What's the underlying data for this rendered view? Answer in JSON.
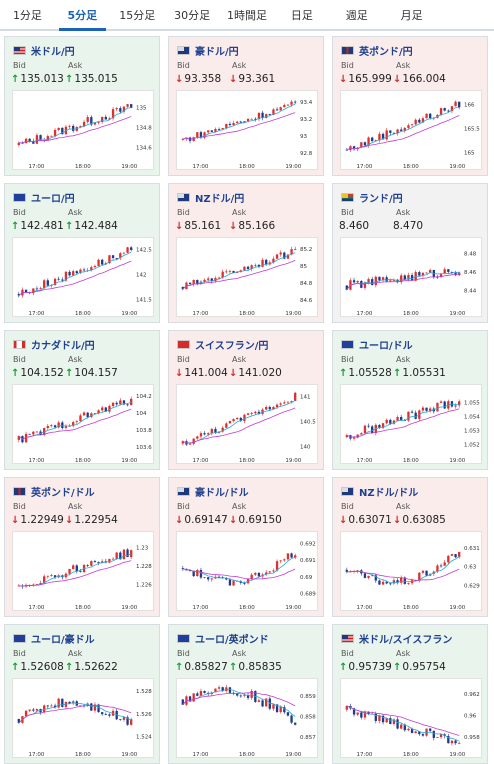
{
  "tabs": [
    {
      "label": "1分足",
      "active": false
    },
    {
      "label": "5分足",
      "active": true
    },
    {
      "label": "15分足",
      "active": false
    },
    {
      "label": "30分足",
      "active": false
    },
    {
      "label": "1時間足",
      "active": false
    },
    {
      "label": "日足",
      "active": false
    },
    {
      "label": "週足",
      "active": false
    },
    {
      "label": "月足",
      "active": false
    }
  ],
  "labels": {
    "bid": "Bid",
    "ask": "Ask"
  },
  "colors": {
    "up_bg": "#e9f4ec",
    "down_bg": "#fbecec",
    "candle_up": "#e0302c",
    "candle_down": "#1e3a8a",
    "ma_short": "#2aa7d8",
    "ma_long": "#c43bd3",
    "arrow_up": "#1a9a3b",
    "arrow_down": "#d22a2a"
  },
  "cards": [
    {
      "pair": "米ドル/円",
      "flag": "us",
      "trend": "up",
      "bid": "135.013",
      "ask": "135.015",
      "chart_data": {
        "type": "candlestick",
        "x_ticks": [
          "17:00",
          "18:00",
          "19:00"
        ],
        "y_ticks": [
          "135",
          "134.8",
          "134.6"
        ],
        "y_range": [
          134.5,
          135.1
        ],
        "start": 134.62,
        "end": 135.0,
        "spread": 0.45
      }
    },
    {
      "pair": "豪ドル/円",
      "flag": "au",
      "trend": "down",
      "bid": "93.358",
      "ask": "93.361",
      "chart_data": {
        "type": "candlestick",
        "x_ticks": [
          "17:00",
          "18:00",
          "19:00"
        ],
        "y_ticks": [
          "93.4",
          "93.2",
          "93",
          "92.8"
        ],
        "y_range": [
          92.75,
          93.45
        ],
        "start": 92.95,
        "end": 93.37,
        "spread": 0.35
      }
    },
    {
      "pair": "英ポンド/円",
      "flag": "gb",
      "trend": "down",
      "bid": "165.999",
      "ask": "166.004",
      "chart_data": {
        "type": "candlestick",
        "x_ticks": [
          "17:00",
          "18:00",
          "19:00"
        ],
        "y_ticks": [
          "166",
          "165.5",
          "165"
        ],
        "y_range": [
          164.9,
          166.15
        ],
        "start": 165.05,
        "end": 166.0,
        "spread": 0.4
      }
    },
    {
      "pair": "ユーロ/円",
      "flag": "eu",
      "trend": "up",
      "bid": "142.481",
      "ask": "142.484",
      "chart_data": {
        "type": "candlestick",
        "x_ticks": [
          "17:00",
          "18:00",
          "19:00"
        ],
        "y_ticks": [
          "142.5",
          "142",
          "141.5"
        ],
        "y_range": [
          141.4,
          142.6
        ],
        "start": 141.6,
        "end": 142.48,
        "spread": 0.4
      }
    },
    {
      "pair": "NZドル/円",
      "flag": "nz",
      "trend": "down",
      "bid": "85.161",
      "ask": "85.166",
      "chart_data": {
        "type": "candlestick",
        "x_ticks": [
          "17:00",
          "18:00",
          "19:00"
        ],
        "y_ticks": [
          "85.2",
          "85",
          "84.8",
          "84.6"
        ],
        "y_range": [
          84.55,
          85.25
        ],
        "start": 84.75,
        "end": 85.16,
        "spread": 0.35
      }
    },
    {
      "pair": "ランド/円",
      "flag": "za",
      "trend": "flat",
      "bid": "8.460",
      "ask": "8.470",
      "chart_data": {
        "type": "candlestick",
        "x_ticks": [
          "17:00",
          "18:00",
          "19:00"
        ],
        "y_ticks": [
          "8.48",
          "8.46",
          "8.44"
        ],
        "y_range": [
          8.425,
          8.49
        ],
        "start": 8.445,
        "end": 8.462,
        "spread": 0.45
      }
    },
    {
      "pair": "カナダドル/円",
      "flag": "ca",
      "trend": "up",
      "bid": "104.152",
      "ask": "104.157",
      "chart_data": {
        "type": "candlestick",
        "x_ticks": [
          "17:00",
          "18:00",
          "19:00"
        ],
        "y_ticks": [
          "104.2",
          "104",
          "103.8",
          "103.6"
        ],
        "y_range": [
          103.55,
          104.25
        ],
        "start": 103.68,
        "end": 104.15,
        "spread": 0.4
      }
    },
    {
      "pair": "スイスフラン/円",
      "flag": "ch",
      "trend": "down",
      "bid": "141.004",
      "ask": "141.020",
      "chart_data": {
        "type": "candlestick",
        "x_ticks": [
          "17:00",
          "18:00",
          "19:00"
        ],
        "y_ticks": [
          "141",
          "140.5",
          "140"
        ],
        "y_range": [
          139.9,
          141.1
        ],
        "start": 140.05,
        "end": 141.0,
        "spread": 0.35
      }
    },
    {
      "pair": "ユーロ/ドル",
      "flag": "eu",
      "trend": "up",
      "bid": "1.05528",
      "ask": "1.05531",
      "chart_data": {
        "type": "candlestick",
        "x_ticks": [
          "17:00",
          "18:00",
          "19:00"
        ],
        "y_ticks": [
          "1.055",
          "1.054",
          "1.053",
          "1.052"
        ],
        "y_range": [
          1.0515,
          1.0558
        ],
        "start": 1.0525,
        "end": 1.0552,
        "spread": 0.5
      }
    },
    {
      "pair": "英ポンド/ドル",
      "flag": "gb",
      "trend": "down",
      "bid": "1.22949",
      "ask": "1.22954",
      "chart_data": {
        "type": "candlestick",
        "x_ticks": [
          "17:00",
          "18:00",
          "19:00"
        ],
        "y_ticks": [
          "1.23",
          "1.228",
          "1.226"
        ],
        "y_range": [
          1.2245,
          1.231
        ],
        "start": 1.2258,
        "end": 1.2295,
        "spread": 0.45
      }
    },
    {
      "pair": "豪ドル/ドル",
      "flag": "au",
      "trend": "down",
      "bid": "0.69147",
      "ask": "0.69150",
      "chart_data": {
        "type": "candlestick",
        "x_ticks": [
          "17:00",
          "18:00",
          "19:00"
        ],
        "y_ticks": [
          "0.692",
          "0.691",
          "0.69",
          "0.689"
        ],
        "y_range": [
          0.6887,
          0.6923
        ],
        "start": 0.6905,
        "end": 0.6915,
        "spread": 0.4,
        "dip": true
      }
    },
    {
      "pair": "NZドル/ドル",
      "flag": "nz",
      "trend": "down",
      "bid": "0.63071",
      "ask": "0.63085",
      "chart_data": {
        "type": "candlestick",
        "x_ticks": [
          "17:00",
          "18:00",
          "19:00"
        ],
        "y_ticks": [
          "0.631",
          "0.63",
          "0.629"
        ],
        "y_range": [
          0.6283,
          0.6315
        ],
        "start": 0.6298,
        "end": 0.6308,
        "spread": 0.4,
        "dip": true
      }
    },
    {
      "pair": "ユーロ/豪ドル",
      "flag": "eu",
      "trend": "up",
      "bid": "1.52608",
      "ask": "1.52622",
      "chart_data": {
        "type": "candlestick",
        "x_ticks": [
          "17:00",
          "18:00",
          "19:00"
        ],
        "y_ticks": [
          "1.528",
          "1.526",
          "1.524"
        ],
        "y_range": [
          1.5232,
          1.5285
        ],
        "start": 1.5255,
        "end": 1.526,
        "spread": 0.5,
        "hump": true
      }
    },
    {
      "pair": "ユーロ/英ポンド",
      "flag": "eu",
      "trend": "up",
      "bid": "0.85827",
      "ask": "0.85835",
      "chart_data": {
        "type": "candlestick",
        "x_ticks": [
          "17:00",
          "18:00",
          "19:00"
        ],
        "y_ticks": [
          "0.859",
          "0.858",
          "0.857"
        ],
        "y_range": [
          0.8566,
          0.8595
        ],
        "start": 0.8588,
        "end": 0.8582,
        "spread": 0.5,
        "hump": true
      }
    },
    {
      "pair": "米ドル/スイスフラン",
      "flag": "us",
      "trend": "up",
      "bid": "0.95739",
      "ask": "0.95754",
      "chart_data": {
        "type": "candlestick",
        "x_ticks": [
          "17:00",
          "18:00",
          "19:00"
        ],
        "y_ticks": [
          "0.962",
          "0.96",
          "0.958"
        ],
        "y_range": [
          0.9572,
          0.9628
        ],
        "start": 0.9605,
        "end": 0.9574,
        "spread": 0.45
      }
    }
  ]
}
